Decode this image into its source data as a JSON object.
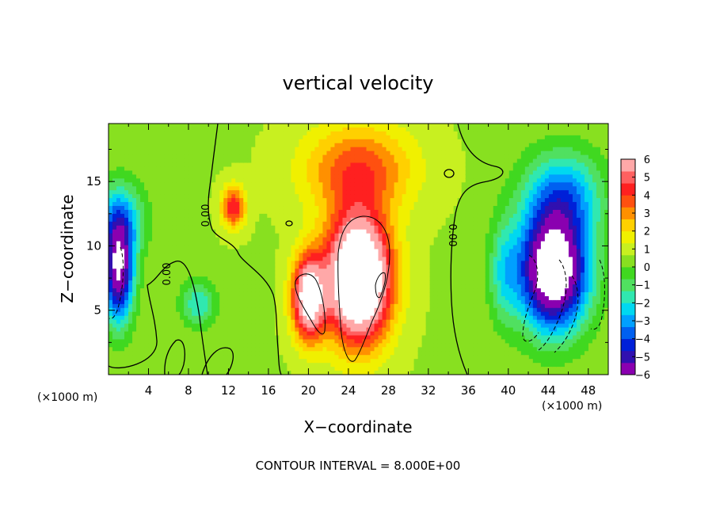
{
  "chart_data": {
    "type": "heatmap",
    "title": "vertical velocity",
    "xlabel": "X−coordinate",
    "ylabel": "Z−coordinate",
    "x_unit_label": "(×1000 m)",
    "z_unit_label": "(×1000 m)",
    "xlim": [
      0,
      50
    ],
    "ylim": [
      0,
      19.5
    ],
    "x_ticks": [
      "4",
      "8",
      "12",
      "16",
      "20",
      "24",
      "28",
      "32",
      "36",
      "40",
      "44",
      "48"
    ],
    "y_ticks": [
      "5",
      "10",
      "15"
    ],
    "colorbar_ticks": [
      "6",
      "5",
      "4",
      "3",
      "2",
      "1",
      "0",
      "−1",
      "−2",
      "−3",
      "−4",
      "−5",
      "−6"
    ],
    "colorbar_range": [
      -6,
      6
    ],
    "colors": [
      "#8a00b0",
      "#3010b0",
      "#0020d8",
      "#0060f0",
      "#00a0ff",
      "#00d8f0",
      "#30e8b0",
      "#50e060",
      "#40d820",
      "#88e020",
      "#c8f020",
      "#f0f000",
      "#ffd000",
      "#ff9000",
      "#ff5010",
      "#ff2020",
      "#ff6060",
      "#ffa8a8"
    ],
    "contour_labels": [
      "0.00",
      "0.00",
      "0.00"
    ],
    "footer": "CONTOUR INTERVAL =  8.000E+00",
    "features": [
      {
        "x": 25,
        "z": 7.5,
        "value": 10,
        "sx": 3.2,
        "sz": 4.8
      },
      {
        "x": 20,
        "z": 6,
        "value": 7,
        "sx": 1.6,
        "sz": 3.2
      },
      {
        "x": 25,
        "z": 16,
        "value": 3.2,
        "sx": 5.5,
        "sz": 3.5
      },
      {
        "x": 12.5,
        "z": 13,
        "value": 4,
        "sx": 1.2,
        "sz": 1.6
      },
      {
        "x": 44.5,
        "z": 8,
        "value": -9,
        "sx": 3.5,
        "sz": 4.5
      },
      {
        "x": 45.5,
        "z": 14,
        "value": -3.5,
        "sx": 4,
        "sz": 3.5
      },
      {
        "x": 1,
        "z": 8,
        "value": -7,
        "sx": 1.5,
        "sz": 4
      },
      {
        "x": 1.2,
        "z": 12,
        "value": -3,
        "sx": 2.5,
        "sz": 3
      },
      {
        "x": 9,
        "z": 5.5,
        "value": -2.5,
        "sx": 1.8,
        "sz": 1.8
      },
      {
        "x": 39.5,
        "z": 8,
        "value": -2,
        "sx": 1.5,
        "sz": 4
      }
    ]
  }
}
